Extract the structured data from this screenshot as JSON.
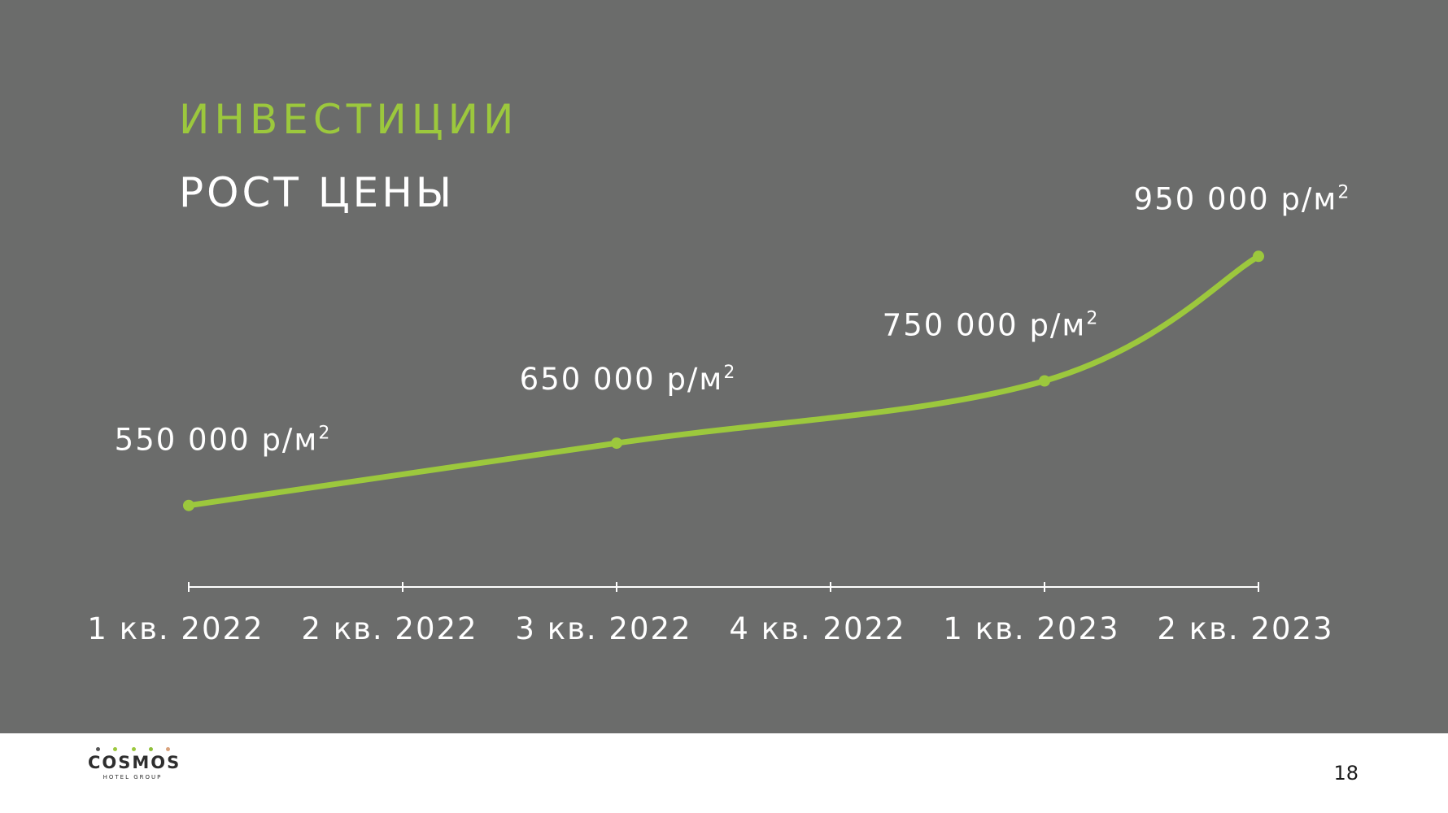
{
  "header": {
    "section": "ИНВЕСТИЦИИ",
    "title": "РОСТ ЦЕНЫ"
  },
  "chart_data": {
    "type": "line",
    "title": "РОСТ ЦЕНЫ",
    "categories": [
      "1 кв. 2022",
      "2 кв. 2022",
      "3 кв. 2022",
      "4 кв. 2022",
      "1 кв. 2023",
      "2 кв. 2023"
    ],
    "points": [
      {
        "category": "1 кв. 2022",
        "value": 550000,
        "label": "550 000 р/м",
        "sup": "2"
      },
      {
        "category": "3 кв. 2022",
        "value": 650000,
        "label": "650 000 р/м",
        "sup": "2"
      },
      {
        "category": "1 кв. 2023",
        "value": 750000,
        "label": "750 000 р/м",
        "sup": "2"
      },
      {
        "category": "2 кв. 2023",
        "value": 950000,
        "label": "950 000 р/м",
        "sup": "2"
      }
    ],
    "unit": "р/м²",
    "line_color": "#9cc83d",
    "axis_color": "#ffffff",
    "xlabel": "",
    "ylabel": ""
  },
  "footer": {
    "logo": "COSMOS",
    "logo_sub": "HOTEL GROUP",
    "page_number": "18"
  },
  "colors": {
    "background": "#6b6c6b",
    "accent": "#9cc83d",
    "text": "#ffffff"
  }
}
